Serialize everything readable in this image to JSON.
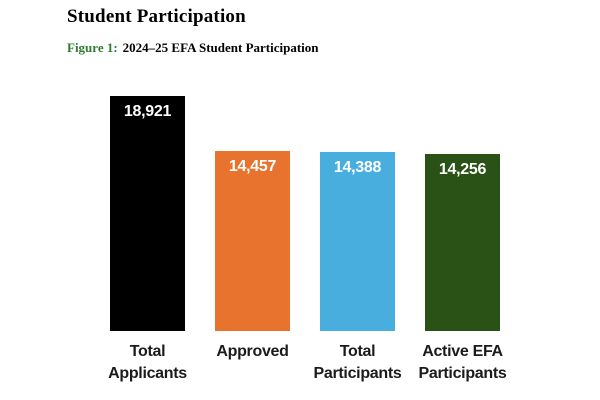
{
  "page": {
    "title": "Student Participation",
    "figure_label": "Figure 1:",
    "figure_caption": "2024–25 EFA Student Participation"
  },
  "colors": {
    "figure_label_green": "#2E7D32",
    "title_black": "#000000",
    "value_label_white": "#ffffff"
  },
  "chart_data": {
    "type": "bar",
    "title": "2024–25 EFA Student Participation",
    "categories": [
      "Total Applicants",
      "Approved",
      "Total Participants",
      "Active EFA Participants"
    ],
    "category_lines": [
      [
        "Total",
        "Applicants"
      ],
      [
        "Approved"
      ],
      [
        "Total",
        "Participants"
      ],
      [
        "Active EFA",
        "Participants"
      ]
    ],
    "values": [
      18921,
      14457,
      14388,
      14256
    ],
    "value_labels": [
      "18,921",
      "14,457",
      "14,388",
      "14,256"
    ],
    "bar_colors": [
      "#000000",
      "#E7732E",
      "#47AEDE",
      "#2A5116"
    ],
    "xlabel": "",
    "ylabel": "",
    "ylim": [
      0,
      18921
    ],
    "grid": false,
    "legend": "none",
    "value_label_position": "inside-top"
  }
}
